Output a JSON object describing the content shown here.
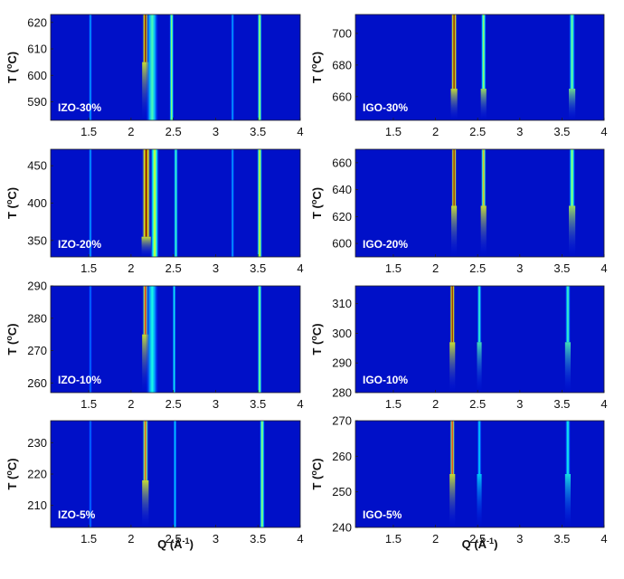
{
  "chart_data": {
    "type": "heatmap",
    "colormap": "jet",
    "colors": {
      "background": "#00008f",
      "low": "#0018ff",
      "mid": "#00e0ff",
      "high_mid": "#ffe000",
      "high": "#c00000"
    },
    "xlabel": "Q (Å",
    "xlabel_sup": "-1",
    "xlabel_close": ")",
    "x_ticks": [
      "1.5",
      "2",
      "2.5",
      "3",
      "3.5",
      "4"
    ],
    "xlim": [
      1.05,
      4.0
    ],
    "ylabel_prefix": "T (",
    "ylabel_sup": "o",
    "ylabel_suffix": "C)",
    "panels": [
      {
        "label": "IZO-30%",
        "ylim": [
          583,
          623
        ],
        "y_ticks": [
          "590",
          "600",
          "610",
          "620"
        ],
        "peaks": [
          {
            "q": 1.52,
            "intensity": 0.3,
            "width": 0.015,
            "onset_T": 583
          },
          {
            "q": 2.17,
            "intensity": 1.0,
            "width": 0.035,
            "onset_T": 605
          },
          {
            "q": 2.25,
            "intensity": 0.45,
            "width": 0.07,
            "onset_T": 583
          },
          {
            "q": 2.48,
            "intensity": 0.55,
            "width": 0.025,
            "onset_T": 583
          },
          {
            "q": 3.2,
            "intensity": 0.3,
            "width": 0.015,
            "onset_T": 583
          },
          {
            "q": 3.52,
            "intensity": 0.6,
            "width": 0.025,
            "onset_T": 583
          }
        ]
      },
      {
        "label": "IGO-30%",
        "ylim": [
          645,
          712
        ],
        "y_ticks": [
          "660",
          "680",
          "700"
        ],
        "peaks": [
          {
            "q": 2.22,
            "intensity": 1.0,
            "width": 0.035,
            "onset_T": 665
          },
          {
            "q": 2.57,
            "intensity": 0.55,
            "width": 0.03,
            "onset_T": 665
          },
          {
            "q": 3.62,
            "intensity": 0.5,
            "width": 0.035,
            "onset_T": 665
          }
        ]
      },
      {
        "label": "IZO-20%",
        "ylim": [
          328,
          472
        ],
        "y_ticks": [
          "350",
          "400",
          "450"
        ],
        "peaks": [
          {
            "q": 1.52,
            "intensity": 0.3,
            "width": 0.015,
            "onset_T": 328
          },
          {
            "q": 2.18,
            "intensity": 1.0,
            "width": 0.05,
            "onset_T": 355
          },
          {
            "q": 2.28,
            "intensity": 0.6,
            "width": 0.05,
            "onset_T": 328
          },
          {
            "q": 2.53,
            "intensity": 0.45,
            "width": 0.025,
            "onset_T": 328
          },
          {
            "q": 3.2,
            "intensity": 0.3,
            "width": 0.015,
            "onset_T": 328
          },
          {
            "q": 3.52,
            "intensity": 0.65,
            "width": 0.03,
            "onset_T": 328
          }
        ]
      },
      {
        "label": "IGO-20%",
        "ylim": [
          590,
          670
        ],
        "y_ticks": [
          "600",
          "620",
          "640",
          "660"
        ],
        "peaks": [
          {
            "q": 2.22,
            "intensity": 1.0,
            "width": 0.03,
            "onset_T": 628
          },
          {
            "q": 2.57,
            "intensity": 0.7,
            "width": 0.03,
            "onset_T": 628
          },
          {
            "q": 3.62,
            "intensity": 0.55,
            "width": 0.035,
            "onset_T": 628
          }
        ]
      },
      {
        "label": "IZO-10%",
        "ylim": [
          257,
          290
        ],
        "y_ticks": [
          "260",
          "270",
          "280",
          "290"
        ],
        "peaks": [
          {
            "q": 1.52,
            "intensity": 0.25,
            "width": 0.015,
            "onset_T": 257
          },
          {
            "q": 2.17,
            "intensity": 0.85,
            "width": 0.035,
            "onset_T": 275
          },
          {
            "q": 2.25,
            "intensity": 0.4,
            "width": 0.07,
            "onset_T": 257
          },
          {
            "q": 2.51,
            "intensity": 0.4,
            "width": 0.02,
            "onset_T": 257
          },
          {
            "q": 3.52,
            "intensity": 0.55,
            "width": 0.025,
            "onset_T": 257
          }
        ]
      },
      {
        "label": "IGO-10%",
        "ylim": [
          280,
          316
        ],
        "y_ticks": [
          "280",
          "290",
          "300",
          "310"
        ],
        "peaks": [
          {
            "q": 2.2,
            "intensity": 1.0,
            "width": 0.03,
            "onset_T": 297
          },
          {
            "q": 2.52,
            "intensity": 0.45,
            "width": 0.025,
            "onset_T": 297
          },
          {
            "q": 3.57,
            "intensity": 0.45,
            "width": 0.03,
            "onset_T": 297
          }
        ]
      },
      {
        "label": "IZO-5%",
        "ylim": [
          203,
          237
        ],
        "y_ticks": [
          "210",
          "220",
          "230"
        ],
        "peaks": [
          {
            "q": 1.52,
            "intensity": 0.25,
            "width": 0.015,
            "onset_T": 203
          },
          {
            "q": 2.17,
            "intensity": 0.8,
            "width": 0.035,
            "onset_T": 218
          },
          {
            "q": 2.52,
            "intensity": 0.35,
            "width": 0.02,
            "onset_T": 203
          },
          {
            "q": 3.55,
            "intensity": 0.55,
            "width": 0.03,
            "onset_T": 203
          }
        ]
      },
      {
        "label": "IGO-5%",
        "ylim": [
          240,
          270
        ],
        "y_ticks": [
          "240",
          "250",
          "260",
          "270"
        ],
        "peaks": [
          {
            "q": 2.2,
            "intensity": 0.85,
            "width": 0.03,
            "onset_T": 255
          },
          {
            "q": 2.52,
            "intensity": 0.35,
            "width": 0.025,
            "onset_T": 255
          },
          {
            "q": 3.57,
            "intensity": 0.4,
            "width": 0.03,
            "onset_T": 255
          }
        ]
      }
    ]
  }
}
